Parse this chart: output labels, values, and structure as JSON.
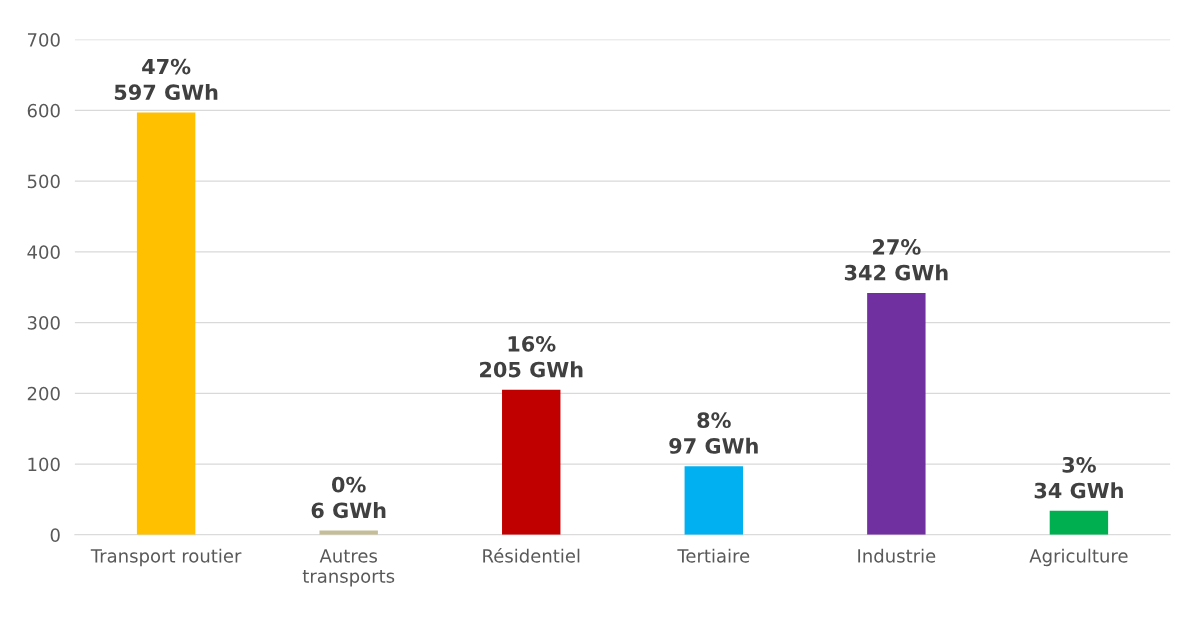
{
  "chart_data": {
    "type": "bar",
    "categories": [
      "Transport routier",
      "Autres\ntransports",
      "Résidentiel",
      "Tertiaire",
      "Industrie",
      "Agriculture"
    ],
    "values": [
      597,
      6,
      205,
      97,
      342,
      34
    ],
    "colors": [
      "#ffc000",
      "#c4bd97",
      "#c00000",
      "#00b0f0",
      "#7030a0",
      "#00b050"
    ],
    "value_labels": [
      "47%\n597 GWh",
      "0%\n6 GWh",
      "16%\n205 GWh",
      "8%\n97 GWh",
      "27%\n342 GWh",
      "3%\n34 GWh"
    ],
    "ylim": [
      0,
      700
    ],
    "yticks": [
      0,
      100,
      200,
      300,
      400,
      500,
      600,
      700
    ],
    "grid": "y",
    "legend": false
  }
}
